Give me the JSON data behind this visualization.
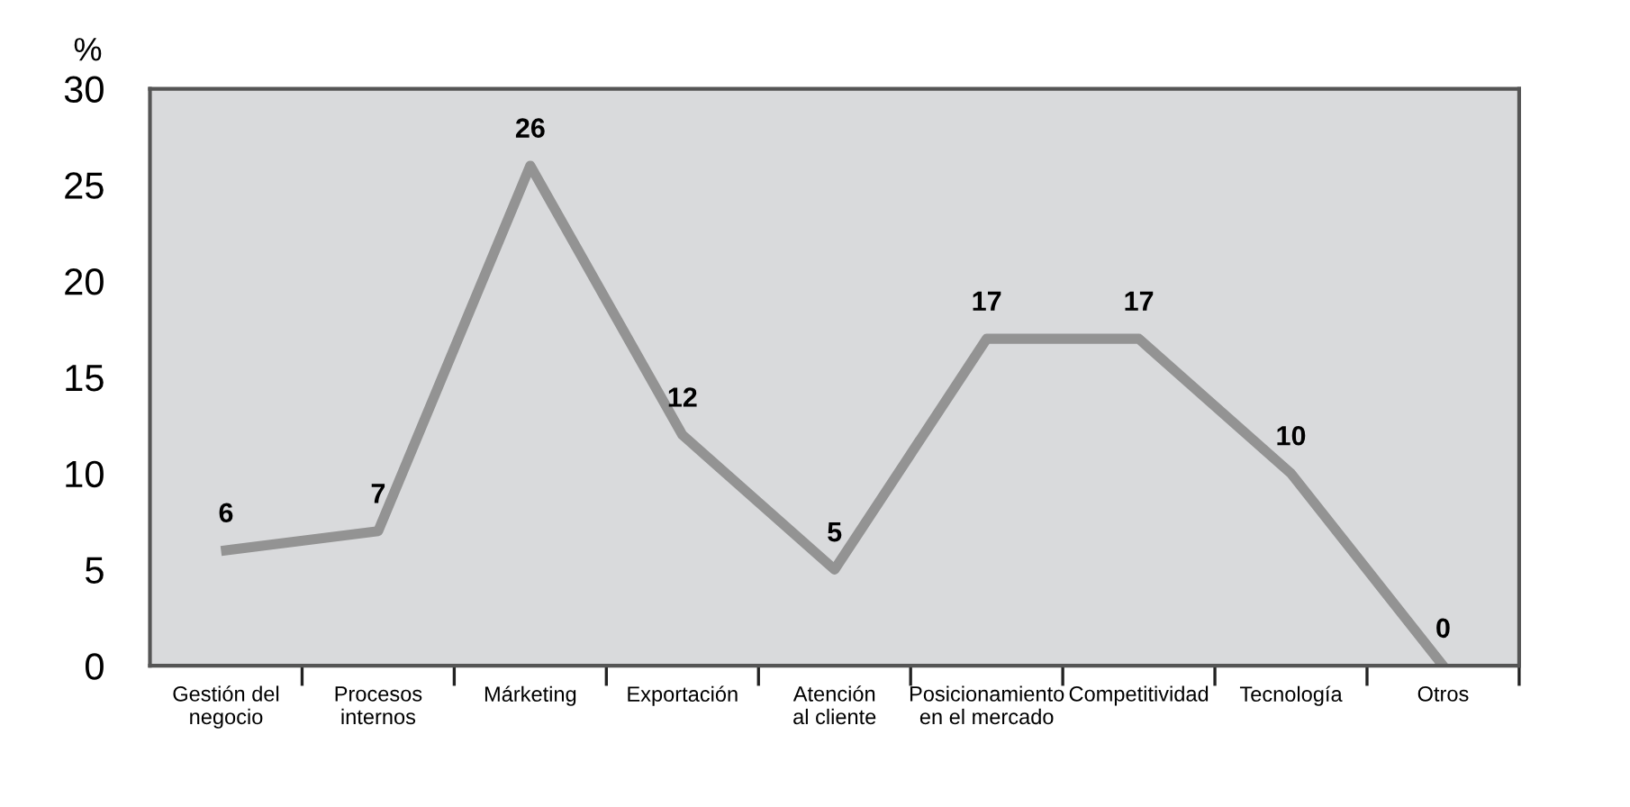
{
  "chart_data": {
    "type": "line",
    "ylabel": "%",
    "categories": [
      "Gestión del\nnegocio",
      "Procesos\ninternos",
      "Márketing",
      "Exportación",
      "Atención\nal cliente",
      "Posicionamiento\nen el mercado",
      "Competitividad",
      "Tecnología",
      "Otros"
    ],
    "series": [
      {
        "color": "#939393",
        "values": [
          6,
          7,
          26,
          12,
          5,
          17,
          17,
          10,
          0
        ]
      }
    ],
    "ylim": [
      0,
      30
    ],
    "yticks": [
      0,
      5,
      10,
      15,
      20,
      25,
      30
    ],
    "grid": false,
    "legend": false,
    "marker": "none",
    "line_style": "solid",
    "data_labels": true
  }
}
